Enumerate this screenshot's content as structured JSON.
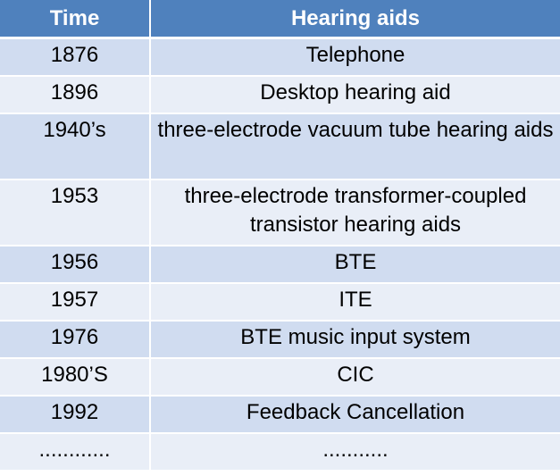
{
  "table": {
    "headers": [
      "Time",
      "Hearing aids"
    ],
    "rows": [
      {
        "time": "1876",
        "aid": "Telephone"
      },
      {
        "time": "1896",
        "aid": "Desktop hearing aid"
      },
      {
        "time": "1940’s",
        "aid": "three-electrode vacuum tube hearing aids"
      },
      {
        "time": "1953",
        "aid": "three-electrode transformer-coupled transistor hearing aids"
      },
      {
        "time": "1956",
        "aid": "BTE"
      },
      {
        "time": "1957",
        "aid": "ITE"
      },
      {
        "time": "1976",
        "aid": "BTE music input system"
      },
      {
        "time": "1980’S",
        "aid": "CIC"
      },
      {
        "time": "1992",
        "aid": "Feedback Cancellation"
      },
      {
        "time": "............",
        "aid": "..........."
      }
    ]
  },
  "colors": {
    "header_bg": "#4f81bd",
    "row_odd_bg": "#d0dcf0",
    "row_even_bg": "#e9eef7",
    "header_text": "#ffffff"
  }
}
